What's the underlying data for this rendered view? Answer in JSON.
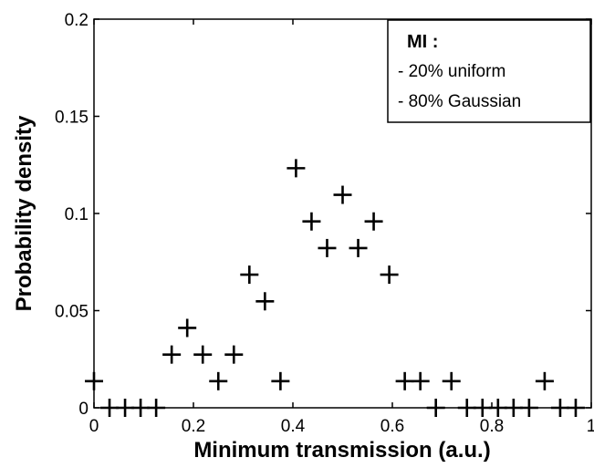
{
  "chart_data": {
    "type": "scatter",
    "xlabel": "Minimum transmission (a.u.)",
    "ylabel": "Probability density",
    "xlim": [
      0,
      1
    ],
    "ylim": [
      0,
      0.2
    ],
    "xticks": [
      "0",
      "0.2",
      "0.4",
      "0.6",
      "0.8",
      "1"
    ],
    "yticks": [
      "0",
      "0.05",
      "0.1",
      "0.15",
      "0.2"
    ],
    "grid": false,
    "marker": "plus",
    "marker_color": "#000000",
    "legend": {
      "placement": "top-right",
      "title": "MI :",
      "entries": [
        "- 20% uniform",
        "- 80% Gaussian"
      ]
    },
    "x": [
      0.0,
      0.03125,
      0.0625,
      0.09375,
      0.125,
      0.15625,
      0.1875,
      0.21875,
      0.25,
      0.28125,
      0.3125,
      0.34375,
      0.375,
      0.40625,
      0.4375,
      0.46875,
      0.5,
      0.53125,
      0.5625,
      0.59375,
      0.625,
      0.65625,
      0.6875,
      0.71875,
      0.75,
      0.78125,
      0.8125,
      0.84375,
      0.875,
      0.90625,
      0.9375,
      0.96875
    ],
    "y": [
      0.0137,
      0.0,
      0.0,
      0.0,
      0.0,
      0.0274,
      0.0411,
      0.0274,
      0.0137,
      0.0274,
      0.0685,
      0.0548,
      0.0137,
      0.1233,
      0.0959,
      0.0822,
      0.1096,
      0.0822,
      0.0959,
      0.0685,
      0.0137,
      0.0137,
      0.0,
      0.0137,
      0.0,
      0.0,
      0.0,
      0.0,
      0.0,
      0.0137,
      0.0,
      0.0
    ]
  }
}
